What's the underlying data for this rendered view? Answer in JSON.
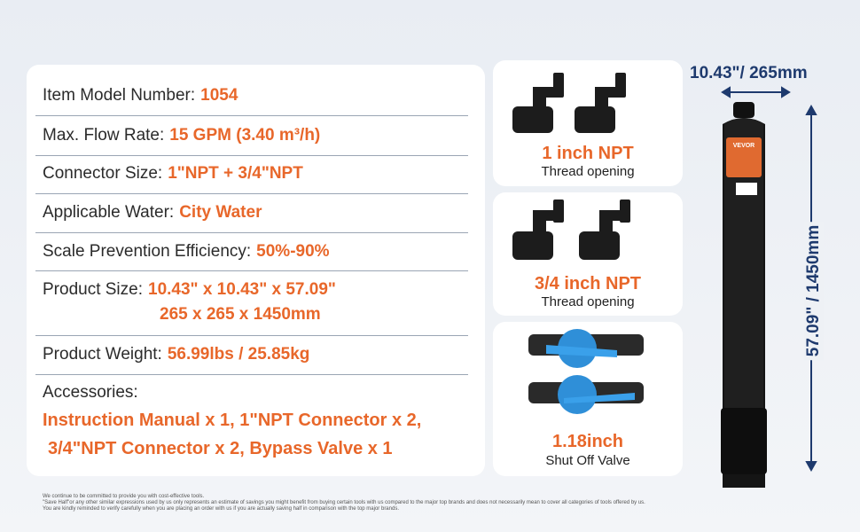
{
  "specs": [
    {
      "label": "Item Model Number:",
      "lines": [
        "1054"
      ]
    },
    {
      "label": "Max. Flow Rate:",
      "lines": [
        "15 GPM (3.40 m³/h)"
      ]
    },
    {
      "label": "Connector Size:",
      "lines": [
        "1\"NPT + 3/4\"NPT"
      ]
    },
    {
      "label": "Applicable Water:",
      "lines": [
        "City Water"
      ]
    },
    {
      "label": "Scale Prevention Efficiency:",
      "lines": [
        "50%-90%"
      ]
    },
    {
      "label": "Product Size:",
      "lines": [
        "10.43\" x 10.43\" x 57.09\"",
        "265 x 265 x 1450mm"
      ]
    },
    {
      "label": "Product Weight:",
      "lines": [
        "56.99lbs / 25.85kg"
      ]
    }
  ],
  "accessories": {
    "label": "Accessories:",
    "lines": [
      "Instruction Manual x 1, 1\"NPT Connector x 2,",
      "3/4\"NPT Connector x 2, Bypass Valve x 1"
    ]
  },
  "cards": [
    {
      "title": "1 inch NPT",
      "subtitle": "Thread opening"
    },
    {
      "title": "3/4 inch NPT",
      "subtitle": "Thread opening"
    },
    {
      "title": "1.18inch",
      "subtitle": "Shut Off Valve"
    }
  ],
  "dimensions": {
    "width": "10.43\"/ 265mm",
    "height": "57.09\" / 1450mm"
  },
  "tank_label": "VEVOR",
  "disclaimer": [
    "We continue to be committed to provide you with cost-effective tools.",
    "\"Save Half\"or any other similar expressions used by us only represents an estimate of savings you might benefit from buying certain tools with us compared to the major top brands and does not necessarily mean to cover all categories of tools offered by us.",
    "You are kindly reminded to verify carefully when you are placing an order with us if you are actually saving half in comparison with the top major brands."
  ]
}
